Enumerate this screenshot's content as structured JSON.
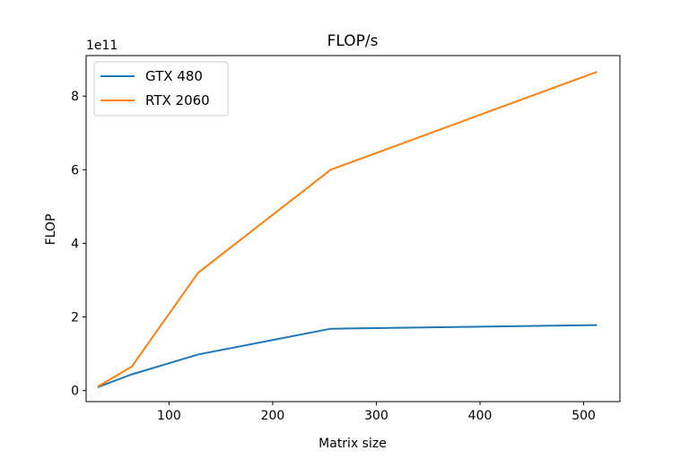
{
  "chart_data": {
    "type": "line",
    "title": "FLOP/s",
    "xlabel": "Matrix size",
    "ylabel": "FLOP",
    "y_offset_label": "1e11",
    "xlim": [
      20,
      535
    ],
    "ylim": [
      -30000000000.0,
      910000000000.0
    ],
    "xticks": [
      100,
      200,
      300,
      400,
      500
    ],
    "yticks": [
      0,
      200000000000.0,
      400000000000.0,
      600000000000.0,
      800000000000.0
    ],
    "ytick_labels": [
      "0",
      "2",
      "4",
      "6",
      "8"
    ],
    "xtick_labels": [
      "100",
      "200",
      "300",
      "400",
      "500"
    ],
    "grid": false,
    "legend_position": "top-left",
    "series": [
      {
        "name": "GTX 480",
        "color": "#1f77b4",
        "x": [
          32,
          64,
          128,
          256,
          512
        ],
        "y": [
          10000000000.0,
          44000000000.0,
          98000000000.0,
          168000000000.0,
          178000000000.0
        ]
      },
      {
        "name": "RTX 2060",
        "color": "#ff7f0e",
        "x": [
          32,
          64,
          128,
          256,
          512
        ],
        "y": [
          12000000000.0,
          65000000000.0,
          320000000000.0,
          600000000000.0,
          865000000000.0
        ]
      }
    ]
  }
}
